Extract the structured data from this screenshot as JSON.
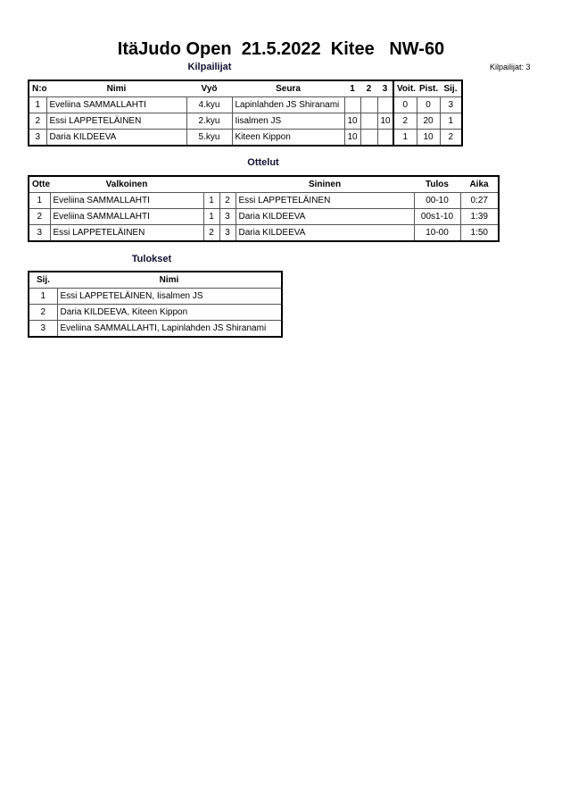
{
  "title": "ItäJudo Open  21.5.2022  Kitee   NW-60",
  "competitors": {
    "heading": "Kilpailijat",
    "count_label": "Kilpailijat: 3",
    "columns": [
      "N:o",
      "Nimi",
      "Vyö",
      "Seura",
      "1",
      "2",
      "3",
      "Voit.",
      "Pist.",
      "Sij."
    ],
    "rows": [
      [
        "1",
        "Eveliina SAMMALLAHTI",
        "4.kyu",
        "Lapinlahden JS Shiranami",
        "",
        "",
        "",
        "0",
        "0",
        "3"
      ],
      [
        "2",
        "Essi LAPPETELÄINEN",
        "2.kyu",
        "Iisalmen JS",
        "10",
        "",
        "10",
        "2",
        "20",
        "1"
      ],
      [
        "3",
        "Daria KILDEEVA",
        "5.kyu",
        "Kiteen Kippon",
        "10",
        "",
        "",
        "1",
        "10",
        "2"
      ]
    ]
  },
  "matches": {
    "heading": "Ottelut",
    "columns": [
      "Ottelu",
      "Valkoinen",
      "",
      "",
      "Sininen",
      "Tulos",
      "Aika"
    ],
    "rows": [
      [
        "1",
        "Eveliina SAMMALLAHTI",
        "1",
        "2",
        "Essi LAPPETELÄINEN",
        "00-10",
        "0:27"
      ],
      [
        "2",
        "Eveliina SAMMALLAHTI",
        "1",
        "3",
        "Daria KILDEEVA",
        "00s1-10",
        "1:39"
      ],
      [
        "3",
        "Essi LAPPETELÄINEN",
        "2",
        "3",
        "Daria KILDEEVA",
        "10-00",
        "1:50"
      ]
    ]
  },
  "results": {
    "heading": "Tulokset",
    "columns": [
      "Sij.",
      "Nimi"
    ],
    "rows": [
      [
        "1",
        "Essi LAPPETELÄINEN, Iisalmen JS"
      ],
      [
        "2",
        "Daria KILDEEVA, Kiteen Kippon"
      ],
      [
        "3",
        "Eveliina SAMMALLAHTI, Lapinlahden JS Shiranami"
      ]
    ]
  }
}
